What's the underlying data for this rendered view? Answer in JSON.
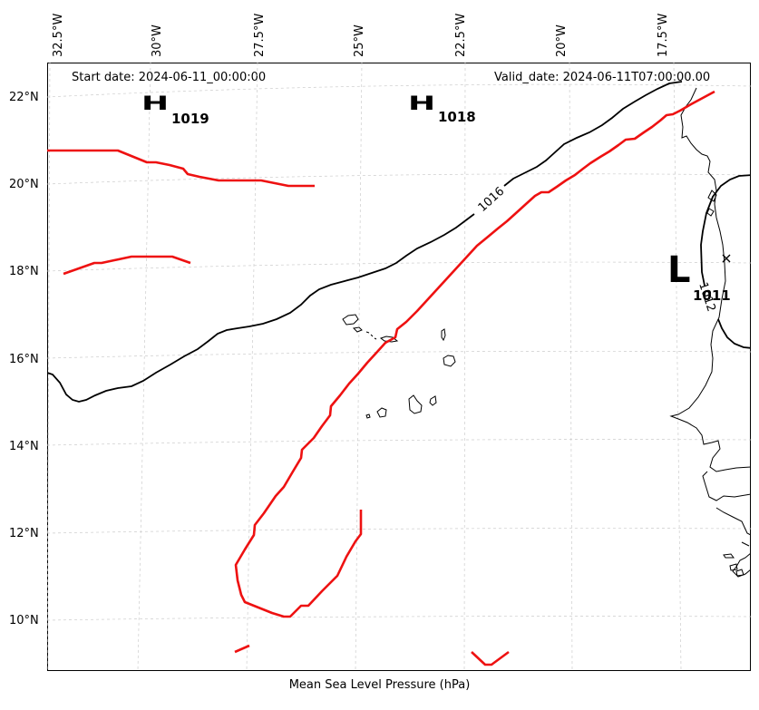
{
  "header": {
    "start_date": "Start date: 2024-06-11_00:00:00",
    "valid_date": "Valid_date: 2024-06-11T07:00:00.00"
  },
  "map": {
    "lon_labels": [
      "32.5°W",
      "30°W",
      "27.5°W",
      "25°W",
      "22.5°W",
      "20°W",
      "17.5°W"
    ],
    "lat_labels": [
      "22°N",
      "20°N",
      "18°N",
      "16°N",
      "14°N",
      "12°N",
      "10°N"
    ],
    "highs": [
      {
        "symbol": "H",
        "value": "1019"
      },
      {
        "symbol": "H",
        "value": "1018"
      }
    ],
    "lows": [
      {
        "symbol": "L",
        "value": "1011"
      }
    ],
    "contour_labels": [
      "1016",
      "1012"
    ],
    "colors": {
      "isobar": "#000000",
      "front": "#ee1111",
      "grid": "#cccccc"
    }
  },
  "caption": "Mean Sea Level Pressure (hPa)"
}
